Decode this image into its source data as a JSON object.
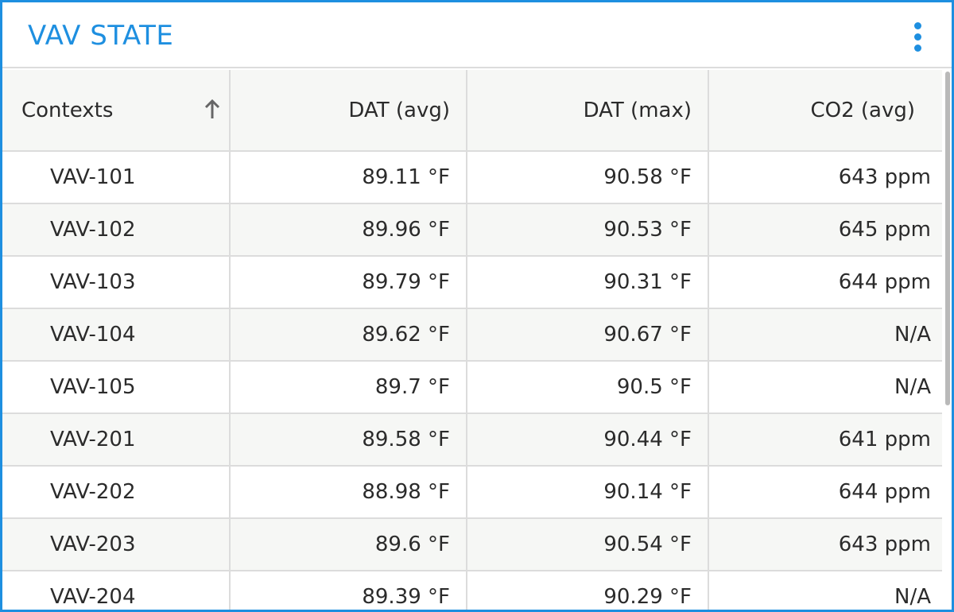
{
  "widget": {
    "title": "VAV STATE",
    "accent_color": "#1e8fe0",
    "menu_icon": "more-vertical-icon"
  },
  "table": {
    "columns": [
      "Contexts",
      "DAT (avg)",
      "DAT (max)",
      "CO2 (avg)"
    ],
    "sort": {
      "column": "Contexts",
      "direction": "ascending",
      "icon": "arrow-up-icon"
    },
    "rows": [
      [
        "VAV-101",
        "89.11 °F",
        "90.58 °F",
        "643 ppm"
      ],
      [
        "VAV-102",
        "89.96 °F",
        "90.53 °F",
        "645 ppm"
      ],
      [
        "VAV-103",
        "89.79 °F",
        "90.31 °F",
        "644 ppm"
      ],
      [
        "VAV-104",
        "89.62 °F",
        "90.67 °F",
        "N/A"
      ],
      [
        "VAV-105",
        "89.7 °F",
        "90.5 °F",
        "N/A"
      ],
      [
        "VAV-201",
        "89.58 °F",
        "90.44 °F",
        "641 ppm"
      ],
      [
        "VAV-202",
        "88.98 °F",
        "90.14 °F",
        "644 ppm"
      ],
      [
        "VAV-203",
        "89.6 °F",
        "90.54 °F",
        "643 ppm"
      ],
      [
        "VAV-204",
        "89.39 °F",
        "90.29 °F",
        "N/A"
      ]
    ]
  }
}
